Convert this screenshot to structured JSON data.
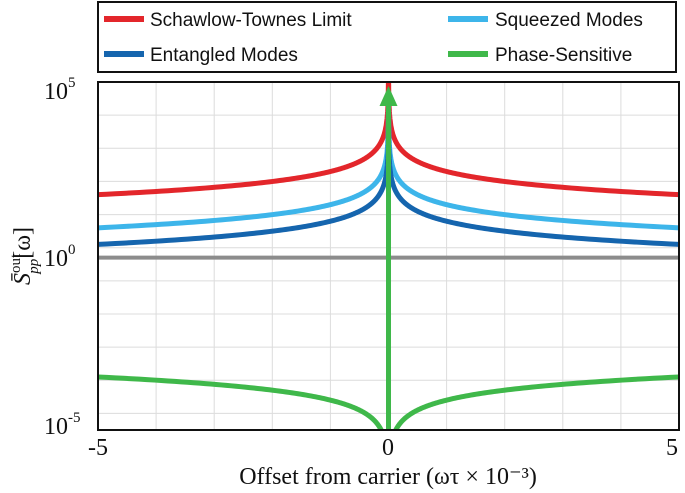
{
  "chart_data": {
    "type": "line",
    "xlabel": "Offset from carrier (ωτ × 10⁻³)",
    "ylabel": "S̄ᵒᵘᵗₚₚ[ω]",
    "ylabel_main": "S̄",
    "ylabel_sup": "out",
    "ylabel_sub": "pp",
    "ylabel_arg": "[ω]",
    "xlim": [
      -5,
      5
    ],
    "ylim_log10": [
      -5.5,
      5
    ],
    "x_ticks": [
      {
        "value": -5,
        "label": "-5"
      },
      {
        "value": 0,
        "label": "0"
      },
      {
        "value": 5,
        "label": "5"
      }
    ],
    "y_ticks": [
      {
        "exponent": 5,
        "base": "10",
        "power": "5"
      },
      {
        "exponent": 0,
        "base": "10",
        "power": "0"
      },
      {
        "exponent": -5,
        "base": "10",
        "power": "-5"
      }
    ],
    "grid": true,
    "reference_line": {
      "log10_value": -0.3,
      "color": "#8c8c8c"
    },
    "series": [
      {
        "name": "Schawlow-Townes Limit",
        "color": "#e3262b",
        "model": "power_law",
        "log10_at_x5": 1.6,
        "slope": -1
      },
      {
        "name": "Squeezed Modes",
        "color": "#3db5ea",
        "model": "power_law",
        "log10_at_x5": 0.6,
        "slope": -1
      },
      {
        "name": "Entangled Modes",
        "color": "#1565ae",
        "model": "power_law",
        "log10_at_x5": 0.1,
        "slope": -1
      },
      {
        "name": "Phase-Sensitive",
        "color": "#3fb84a",
        "model": "power_law",
        "log10_at_x5": -3.9,
        "slope": 1,
        "spike_at_x": 0,
        "spike_arrow": true
      }
    ],
    "legend": {
      "placement": "top",
      "entries": [
        "Schawlow-Townes Limit",
        "Squeezed Modes",
        "Entangled Modes",
        "Phase-Sensitive"
      ]
    }
  }
}
